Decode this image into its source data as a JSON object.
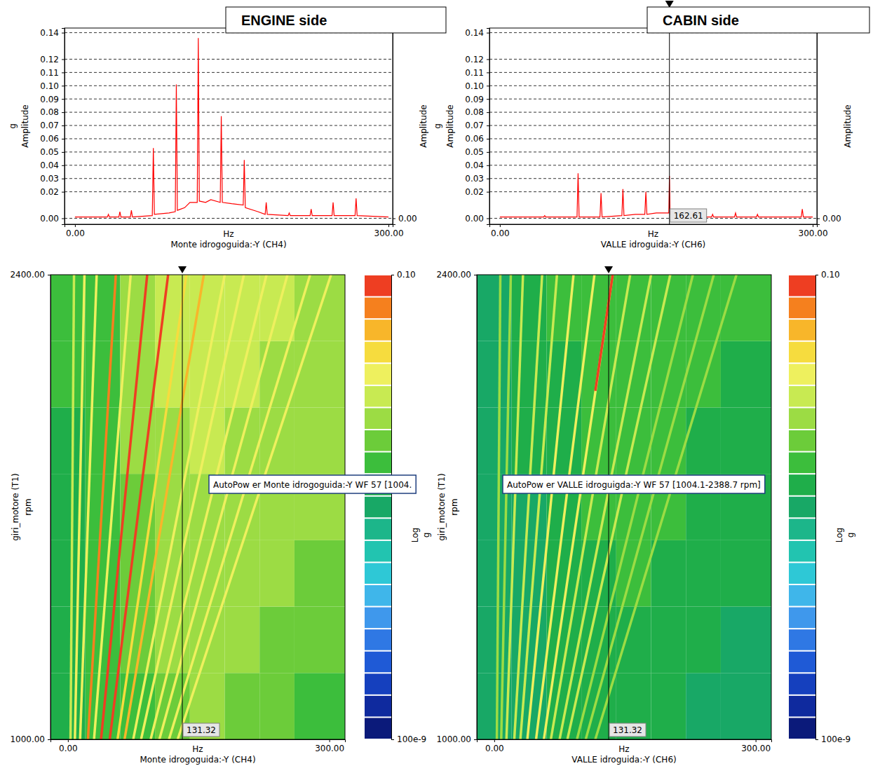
{
  "chart_data": [
    {
      "type": "line",
      "title": "ENGINE side",
      "xlabel": "Monte idrogoguida:-Y (CH4)",
      "xunit": "Hz",
      "ylabel": "Amplitude",
      "yunit": "g",
      "y2label": "Amplitude",
      "color": "#ff0000",
      "grid": true,
      "xlim": [
        -10,
        304
      ],
      "xticks": [
        {
          "value": 0,
          "label": "0.00"
        },
        {
          "value": 300,
          "label": "300.00"
        }
      ],
      "ylim": [
        -0.0045,
        0.1435
      ],
      "yticks": [
        {
          "value": 0,
          "label": "0.00"
        },
        {
          "value": 0.02,
          "label": "0.02"
        },
        {
          "value": 0.03,
          "label": "0.03"
        },
        {
          "value": 0.04,
          "label": "0.04"
        },
        {
          "value": 0.05,
          "label": "0.05"
        },
        {
          "value": 0.06,
          "label": "0.06"
        },
        {
          "value": 0.07,
          "label": "0.07"
        },
        {
          "value": 0.08,
          "label": "0.08"
        },
        {
          "value": 0.09,
          "label": "0.09"
        },
        {
          "value": 0.1,
          "label": "0.10"
        },
        {
          "value": 0.11,
          "label": "0.11"
        },
        {
          "value": 0.12,
          "label": "0.12"
        },
        {
          "value": 0.14,
          "label": "0.14"
        }
      ],
      "y2lim": [
        -0.0045,
        0.1435
      ],
      "y2ticks": [
        {
          "value": 0,
          "label": "0.00"
        }
      ],
      "x": [
        0,
        20,
        31,
        32,
        33,
        42,
        43,
        44,
        53,
        54,
        55,
        74,
        75,
        76,
        90,
        96,
        97,
        98,
        105,
        110,
        117,
        118,
        119,
        125,
        130,
        139,
        140,
        141,
        150,
        161,
        162,
        163,
        175,
        182,
        183,
        184,
        204,
        205,
        206,
        225,
        226,
        227,
        246,
        247,
        248,
        268,
        269,
        270,
        300
      ],
      "values": [
        0.001,
        0.001,
        0.001,
        0.003,
        0.001,
        0.001,
        0.005,
        0.001,
        0.001,
        0.006,
        0.001,
        0.002,
        0.053,
        0.003,
        0.004,
        0.005,
        0.101,
        0.006,
        0.008,
        0.012,
        0.012,
        0.136,
        0.013,
        0.012,
        0.014,
        0.012,
        0.077,
        0.012,
        0.011,
        0.01,
        0.044,
        0.008,
        0.005,
        0.003,
        0.012,
        0.003,
        0.002,
        0.004,
        0.002,
        0.002,
        0.007,
        0.002,
        0.002,
        0.012,
        0.002,
        0.002,
        0.015,
        0.002,
        0.001
      ]
    },
    {
      "type": "line",
      "title": "CABIN side",
      "xlabel": "VALLE idroguida:-Y (CH6)",
      "xunit": "Hz",
      "ylabel": "Amplitude",
      "yunit": "g",
      "y2label": "Amplitude",
      "color": "#ff0000",
      "grid": true,
      "cursor": 162.61,
      "xlim": [
        -10,
        304
      ],
      "xticks": [
        {
          "value": 0,
          "label": "0.00"
        },
        {
          "value": 300,
          "label": "300.00"
        }
      ],
      "ylim": [
        -0.0045,
        0.1435
      ],
      "yticks": [
        {
          "value": 0,
          "label": "0.00"
        },
        {
          "value": 0.02,
          "label": "0.02"
        },
        {
          "value": 0.03,
          "label": "0.03"
        },
        {
          "value": 0.04,
          "label": "0.04"
        },
        {
          "value": 0.05,
          "label": "0.05"
        },
        {
          "value": 0.06,
          "label": "0.06"
        },
        {
          "value": 0.07,
          "label": "0.07"
        },
        {
          "value": 0.08,
          "label": "0.08"
        },
        {
          "value": 0.09,
          "label": "0.09"
        },
        {
          "value": 0.1,
          "label": "0.10"
        },
        {
          "value": 0.11,
          "label": "0.11"
        },
        {
          "value": 0.12,
          "label": "0.12"
        },
        {
          "value": 0.14,
          "label": "0.14"
        }
      ],
      "y2lim": [
        -0.0045,
        0.1435
      ],
      "y2ticks": [
        {
          "value": 0,
          "label": "0.00"
        }
      ],
      "x": [
        0,
        42,
        43,
        44,
        74,
        75,
        76,
        96,
        97,
        98,
        117,
        118,
        119,
        130,
        139,
        140,
        141,
        150,
        162,
        162.61,
        163.2,
        170,
        183,
        184,
        185,
        203,
        204,
        205,
        225,
        226,
        227,
        246,
        247,
        248,
        289,
        290,
        291,
        300
      ],
      "values": [
        0.001,
        0.001,
        0.002,
        0.001,
        0.001,
        0.034,
        0.001,
        0.001,
        0.019,
        0.001,
        0.002,
        0.022,
        0.002,
        0.003,
        0.003,
        0.02,
        0.003,
        0.004,
        0.004,
        0.032,
        0.003,
        0.002,
        0.001,
        0.005,
        0.001,
        0.001,
        0.003,
        0.001,
        0.001,
        0.004,
        0.001,
        0.001,
        0.003,
        0.001,
        0.001,
        0.007,
        0.001,
        0.001
      ]
    },
    {
      "type": "heatmap",
      "annotation": "AutoPow er Monte idrogoguida:-Y WF 57 [1004.",
      "xlabel": "Monte idrogoguida:-Y (CH4)",
      "xunit": "Hz",
      "ylabel": "giri_motore (T1)",
      "yunit": "rpm",
      "cursor": 131.32,
      "xlim": [
        -20,
        318
      ],
      "xticks": [
        {
          "value": 0,
          "label": "0.00"
        },
        {
          "value": 300,
          "label": "300.00"
        }
      ],
      "ylim": [
        1000,
        2400
      ],
      "yticks": [
        {
          "value": 1000,
          "label": "1000.00"
        },
        {
          "value": 2400,
          "label": "2400.00"
        }
      ],
      "colorbar": {
        "lim": [
          1e-07,
          0.1
        ],
        "log": true,
        "label": "Log",
        "unit": "g",
        "ticks": [
          {
            "value": 0.1,
            "label": "0.10"
          },
          {
            "value": 1e-07,
            "label": "100e-9"
          }
        ]
      },
      "cells": {
        "x_edges": [
          -20,
          20,
          60,
          100,
          140,
          180,
          220,
          260,
          318
        ],
        "y_edges": [
          1000,
          1200,
          1400,
          1600,
          1800,
          2000,
          2200,
          2400
        ],
        "values": [
          [
            0.0002,
            0.0003,
            0.0005,
            0.0008,
            0.001,
            0.0008,
            0.0006,
            0.0005
          ],
          [
            0.0002,
            0.0003,
            0.0006,
            0.001,
            0.0012,
            0.001,
            0.0008,
            0.0006
          ],
          [
            0.0002,
            0.0003,
            0.0007,
            0.0012,
            0.0015,
            0.0012,
            0.001,
            0.0008
          ],
          [
            0.0002,
            0.0004,
            0.0008,
            0.0015,
            0.0018,
            0.0015,
            0.0012,
            0.001
          ],
          [
            0.0002,
            0.0004,
            0.001,
            0.0018,
            0.002,
            0.0018,
            0.0015,
            0.0012
          ],
          [
            0.0003,
            0.0005,
            0.0012,
            0.002,
            0.0025,
            0.002,
            0.0018,
            0.0015
          ],
          [
            0.0003,
            0.0005,
            0.0015,
            0.0025,
            0.003,
            0.0025,
            0.002,
            0.0018
          ]
        ]
      },
      "tracks": [
        {
          "x": [
            3,
            7
          ],
          "y": [
            1000,
            2400
          ],
          "amplitude": 0.003
        },
        {
          "x": [
            8,
            19
          ],
          "y": [
            1000,
            2400
          ],
          "amplitude": 0.005
        },
        {
          "x": [
            14,
            33
          ],
          "y": [
            1000,
            2400
          ],
          "amplitude": 0.006
        },
        {
          "x": [
            23,
            55
          ],
          "y": [
            1000,
            2400
          ],
          "amplitude": 0.05
        },
        {
          "x": [
            30,
            72
          ],
          "y": [
            1000,
            2400
          ],
          "amplitude": 0.006
        },
        {
          "x": [
            38,
            91
          ],
          "y": [
            1000,
            2400
          ],
          "amplitude": 0.07
        },
        {
          "x": [
            48,
            115
          ],
          "y": [
            1000,
            2400
          ],
          "amplitude": 0.09
        },
        {
          "x": [
            57,
            136
          ],
          "y": [
            1000,
            2400
          ],
          "amplitude": 0.008
        },
        {
          "x": [
            65,
            156
          ],
          "y": [
            1000,
            2400
          ],
          "amplitude": 0.02
        },
        {
          "x": [
            75,
            180
          ],
          "y": [
            1000,
            2400
          ],
          "amplitude": 0.006
        },
        {
          "x": [
            84,
            202
          ],
          "y": [
            1000,
            2400
          ],
          "amplitude": 0.005
        },
        {
          "x": [
            95,
            228
          ],
          "y": [
            1000,
            2400
          ],
          "amplitude": 0.005
        },
        {
          "x": [
            105,
            252
          ],
          "y": [
            1000,
            2400
          ],
          "amplitude": 0.004
        },
        {
          "x": [
            116,
            278
          ],
          "y": [
            1000,
            2400
          ],
          "amplitude": 0.004
        },
        {
          "x": [
            126,
            302
          ],
          "y": [
            1000,
            2400
          ],
          "amplitude": 0.004
        }
      ]
    },
    {
      "type": "heatmap",
      "annotation": "AutoPow er VALLE idroguigda:-Y WF 57 [1004.1-2388.7 rpm]",
      "xlabel": "VALLE idroguida:-Y (CH6)",
      "xunit": "Hz",
      "ylabel": "giri_motore (T1)",
      "yunit": "rpm",
      "cursor": 131.32,
      "xlim": [
        -20,
        318
      ],
      "xticks": [
        {
          "value": 0,
          "label": "0.00"
        },
        {
          "value": 300,
          "label": "300.00"
        }
      ],
      "ylim": [
        1000,
        2400
      ],
      "yticks": [
        {
          "value": 1000,
          "label": "1000.00"
        },
        {
          "value": 2400,
          "label": "2400.00"
        }
      ],
      "colorbar": {
        "lim": [
          1e-07,
          0.1
        ],
        "log": true,
        "label": "Log",
        "unit": "g",
        "ticks": [
          {
            "value": 0.1,
            "label": "0.10"
          },
          {
            "value": 1e-07,
            "label": "100e-9"
          }
        ]
      },
      "cells": {
        "x_edges": [
          -20,
          20,
          60,
          100,
          140,
          180,
          220,
          260,
          318
        ],
        "y_edges": [
          1000,
          1200,
          1400,
          1600,
          1800,
          2000,
          2200,
          2400
        ],
        "values": [
          [
            0.0001,
            0.00012,
            0.00015,
            0.0002,
            0.0002,
            0.00015,
            0.00012,
            0.0001
          ],
          [
            0.0001,
            0.00012,
            0.00015,
            0.0002,
            0.00025,
            0.0002,
            0.00015,
            0.00012
          ],
          [
            0.0001,
            0.00012,
            0.0002,
            0.00025,
            0.0003,
            0.00025,
            0.0002,
            0.00015
          ],
          [
            0.0001,
            0.00012,
            0.0002,
            0.0003,
            0.0003,
            0.0003,
            0.0002,
            0.00015
          ],
          [
            0.0001,
            0.00015,
            0.0002,
            0.0003,
            0.00035,
            0.0003,
            0.00025,
            0.0002
          ],
          [
            0.00012,
            0.00015,
            0.00025,
            0.00035,
            0.0004,
            0.00035,
            0.0003,
            0.00025
          ],
          [
            0.00012,
            0.00015,
            0.0003,
            0.0004,
            0.0005,
            0.0004,
            0.00035,
            0.0003
          ]
        ]
      },
      "tracks": [
        {
          "x": [
            3,
            7
          ],
          "y": [
            1000,
            2400
          ],
          "amplitude": 0.001
        },
        {
          "x": [
            8,
            19
          ],
          "y": [
            1000,
            2400
          ],
          "amplitude": 0.0015
        },
        {
          "x": [
            14,
            33
          ],
          "y": [
            1000,
            2400
          ],
          "amplitude": 0.002
        },
        {
          "x": [
            23,
            55
          ],
          "y": [
            1000,
            2400
          ],
          "amplitude": 0.003
        },
        {
          "x": [
            30,
            72
          ],
          "y": [
            1000,
            2400
          ],
          "amplitude": 0.002
        },
        {
          "x": [
            38,
            91
          ],
          "y": [
            1000,
            2400
          ],
          "amplitude": 0.004
        },
        {
          "x": [
            48,
            115
          ],
          "y": [
            1000,
            2400
          ],
          "amplitude": 0.004
        },
        {
          "x": [
            57,
            136
          ],
          "y": [
            1000,
            2400
          ],
          "amplitude": 0.005
        },
        {
          "x": [
            65,
            156
          ],
          "y": [
            1000,
            2400
          ],
          "amplitude": 0.003
        },
        {
          "x": [
            75,
            180
          ],
          "y": [
            1000,
            2400
          ],
          "amplitude": 0.003
        },
        {
          "x": [
            84,
            202
          ],
          "y": [
            1000,
            2400
          ],
          "amplitude": 0.002
        },
        {
          "x": [
            95,
            228
          ],
          "y": [
            1000,
            2400
          ],
          "amplitude": 0.0015
        },
        {
          "x": [
            105,
            252
          ],
          "y": [
            1000,
            2400
          ],
          "amplitude": 0.001
        },
        {
          "x": [
            116,
            278
          ],
          "y": [
            1000,
            2400
          ],
          "amplitude": 0.001
        },
        {
          "x": [
            116,
            136
          ],
          "y": [
            2050,
            2400
          ],
          "amplitude": 0.06
        }
      ]
    }
  ]
}
